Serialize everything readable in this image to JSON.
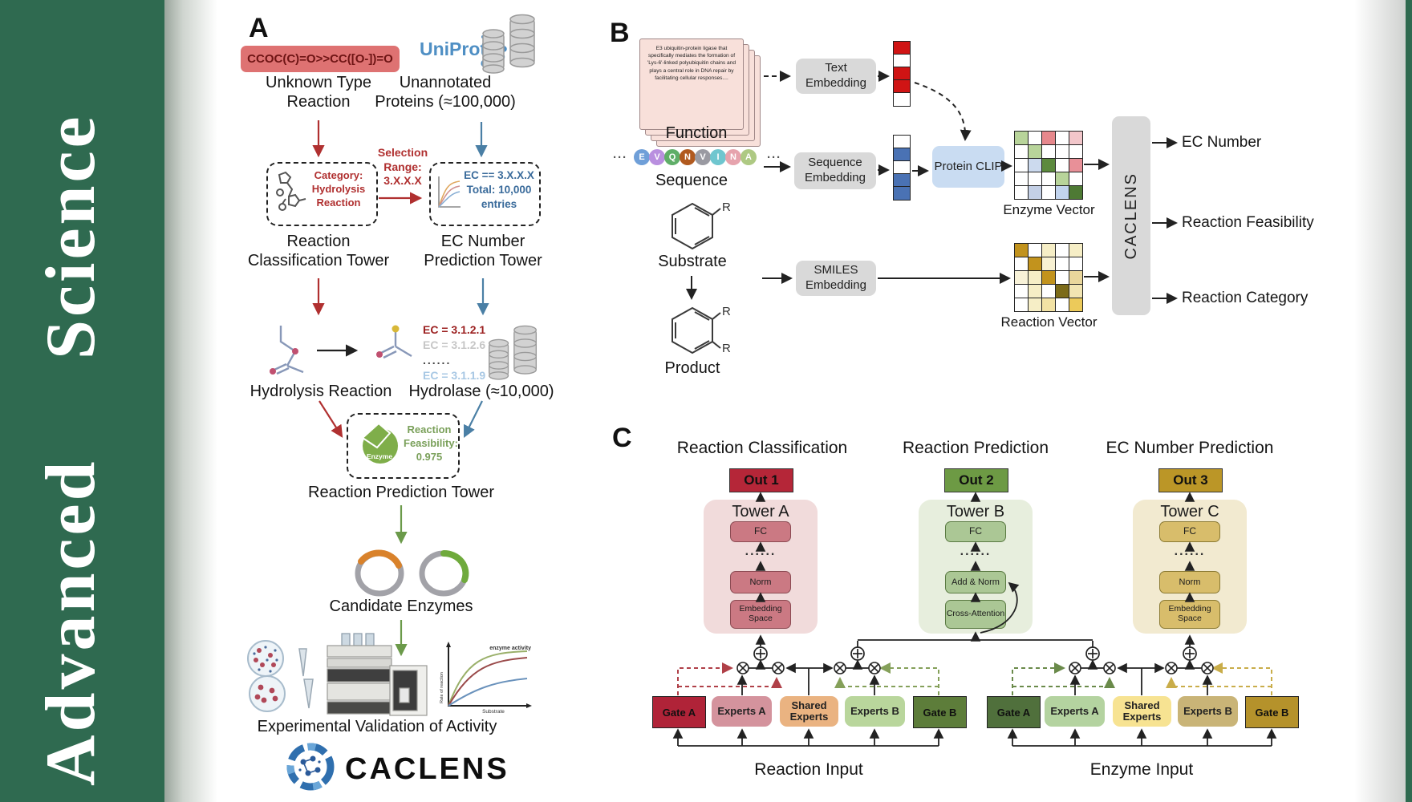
{
  "sidebar": {
    "words": [
      "Advanced",
      "Science"
    ],
    "color": "#2f6a50"
  },
  "panelA": {
    "label": "A",
    "smiles": "CCOC(C)=O>>CC([O-])=O",
    "unknown_line1": "Unknown Type",
    "unknown_line2": "Reaction",
    "uniprot": "UniProt",
    "unannotated_line1": "Unannotated",
    "unannotated_line2": "Proteins (≈100,000)",
    "category": "Category: Hydrolysis Reaction",
    "selection": "Selection Range: 3.X.X.X",
    "ec_filter_line1": "EC == 3.X.X.X",
    "ec_filter_line2": "Total: 10,000 entries",
    "classification_line1": "Reaction",
    "classification_line2": "Classification Tower",
    "ec_tower_line1": "EC Number",
    "ec_tower_line2": "Prediction Tower",
    "ec_list": [
      "EC = 3.1.2.1",
      "EC = 3.1.2.6",
      "......",
      "EC = 3.1.1.9"
    ],
    "hydrolysis": "Hydrolysis Reaction",
    "hydrolase": "Hydrolase (≈10,000)",
    "enzyme_badge": "Enzyme",
    "feasibility": "Reaction Feasibility: 0.975",
    "prediction_tower": "Reaction Prediction Tower",
    "candidates": "Candidate Enzymes",
    "graph": {
      "curve_label": "enzyme activity",
      "ylabel": "Rate of reaction",
      "xlabel": "Substrate"
    },
    "validation": "Experimental Validation of Activity",
    "brand": "CACLENS"
  },
  "panelB": {
    "label": "B",
    "function_text": "E3 ubiquitin-protein ligase that specifically mediates the formation of 'Lys-6'-linked polyubiquitin chains and plays a central role in DNA repair by facilitating cellular responses....",
    "function_label": "Function",
    "ellipsis": "···",
    "sequence": {
      "letters": [
        "E",
        "V",
        "Q",
        "N",
        "V",
        "I",
        "N",
        "A"
      ],
      "colors": [
        "#6f9fd8",
        "#b98fdf",
        "#5fae68",
        "#b15a1f",
        "#9a9aa2",
        "#6fc6cf",
        "#e6a3ad",
        "#aec983"
      ],
      "label": "Sequence"
    },
    "substrate_label": "Substrate",
    "product_label": "Product",
    "r_group": "R",
    "text_embedding": "Text Embedding",
    "sequence_embedding": "Sequence Embedding",
    "smiles_embedding": "SMILES Embedding",
    "protein_clip": "Protein CLIP",
    "text_vector": [
      "#d01414",
      "#ffffff",
      "#d01414",
      "#d01414",
      "#ffffff"
    ],
    "seq_vector": [
      "#ffffff",
      "#4a72b4",
      "#ffffff",
      "#4a72b4",
      "#4a72b4"
    ],
    "enzyme_vector_label": "Enzyme Vector",
    "reaction_vector_label": "Reaction Vector",
    "enzyme_matrix": [
      "#b8d49a",
      "#ffffff",
      "#e6888c",
      "#ffffff",
      "#f2c6ca",
      "#ffffff",
      "#b8d49a",
      "#ffffff",
      "#ffffff",
      "#ffffff",
      "#ffffff",
      "#ccdaee",
      "#5c8a3e",
      "#ffffff",
      "#e89098",
      "#ffffff",
      "#ffffff",
      "#ffffff",
      "#b8d49a",
      "#ffffff",
      "#ffffff",
      "#c4d0e6",
      "#ffffff",
      "#c2d4ee",
      "#4e7a34"
    ],
    "reaction_matrix": [
      "#c2931d",
      "#ffffff",
      "#f6eec6",
      "#ffffff",
      "#f6eec6",
      "#ffffff",
      "#c2931d",
      "#f8f1d2",
      "#ffffff",
      "#ffffff",
      "#f8f2d8",
      "#f6eec6",
      "#c2931d",
      "#ffffff",
      "#ead79c",
      "#ffffff",
      "#f6eec6",
      "#ffffff",
      "#7c6b18",
      "#f2e5b2",
      "#ffffff",
      "#f6eec6",
      "#f2e2a4",
      "#ffffff",
      "#ecca5a"
    ],
    "caclens_bar": "CACLENS",
    "outputs": [
      "EC Number",
      "Reaction Feasibility",
      "Reaction Category"
    ]
  },
  "panelC": {
    "label": "C",
    "headers": [
      "Reaction Classification",
      "Reaction Prediction",
      "EC Number Prediction"
    ],
    "outs": [
      "Out 1",
      "Out 2",
      "Out 3"
    ],
    "out_colors": [
      "#b52638",
      "#6d9a44",
      "#bb9627"
    ],
    "towers": [
      {
        "name": "Tower A",
        "fc": "FC",
        "dots": "......",
        "mid": "Norm",
        "bottom": "Embedding Space"
      },
      {
        "name": "Tower B",
        "fc": "FC",
        "dots": "......",
        "mid": "Add & Norm",
        "bottom": "Cross-Attention"
      },
      {
        "name": "Tower C",
        "fc": "FC",
        "dots": "......",
        "mid": "Norm",
        "bottom": "Embedding Space"
      }
    ],
    "groups": [
      {
        "gate_a": "Gate A",
        "experts_a": "Experts A",
        "shared": "Shared Experts",
        "experts_b": "Experts B",
        "gate_b": "Gate B",
        "input": "Reaction Input",
        "colors": {
          "gate_a": "#b02338",
          "experts_a": "#d4939d",
          "shared": "#eab381",
          "experts_b": "#b9d69c",
          "gate_b": "#5d7d3a"
        }
      },
      {
        "gate_a": "Gate A",
        "experts_a": "Experts A",
        "shared": "Shared Experts",
        "experts_b": "Experts B",
        "gate_b": "Gate B",
        "input": "Enzyme Input",
        "colors": {
          "gate_a": "#50703c",
          "experts_a": "#b4d3a0",
          "shared": "#f7e392",
          "experts_b": "#c9b477",
          "gate_b": "#b5922b"
        }
      }
    ]
  }
}
